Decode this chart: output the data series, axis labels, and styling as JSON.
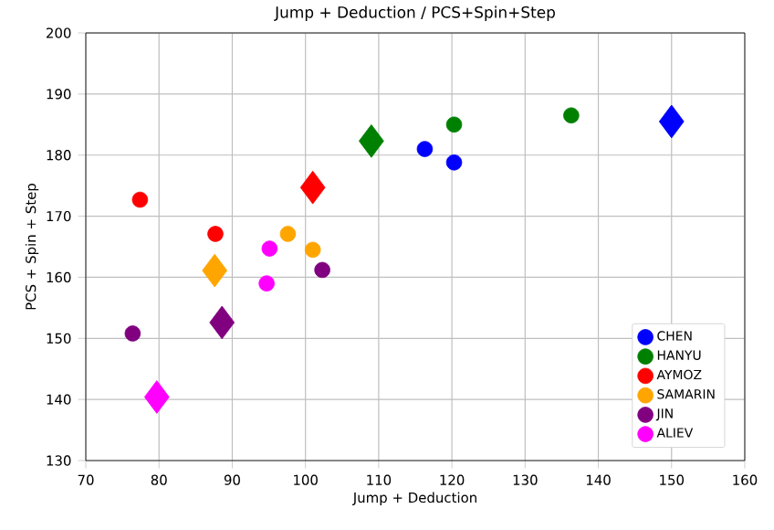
{
  "chart_data": {
    "type": "scatter",
    "title": "Jump + Deduction / PCS+Spin+Step",
    "xlabel": "Jump + Deduction",
    "ylabel": "PCS + Spin + Step",
    "xlim": [
      70,
      160
    ],
    "xticks": [
      70,
      80,
      90,
      100,
      110,
      120,
      130,
      140,
      150,
      160
    ],
    "ylim": [
      130,
      200
    ],
    "yticks": [
      130,
      140,
      150,
      160,
      170,
      180,
      190,
      200
    ],
    "grid": true,
    "legend": "bottom right",
    "marker": "circle",
    "series": [
      {
        "name": "CHEN",
        "color": "#0000ff",
        "x": [
          116.3,
          120.3
        ],
        "values": [
          181.0,
          178.8
        ]
      },
      {
        "name": "HANYU",
        "color": "#008000",
        "x": [
          120.3,
          136.3
        ],
        "values": [
          185.0,
          186.5
        ]
      },
      {
        "name": "AYMOZ",
        "color": "#ff0000",
        "x": [
          77.4,
          87.7
        ],
        "values": [
          172.7,
          167.1
        ]
      },
      {
        "name": "SAMARIN",
        "color": "#ffa500",
        "x": [
          97.6,
          101.0
        ],
        "values": [
          167.1,
          164.5
        ]
      },
      {
        "name": "JIN",
        "color": "#800080",
        "x": [
          76.4,
          102.3
        ],
        "values": [
          150.8,
          161.2
        ]
      },
      {
        "name": "ALIEV",
        "color": "#ff00ff",
        "x": [
          95.1,
          94.7
        ],
        "values": [
          164.7,
          159.0
        ]
      },
      {
        "color": "#0000ff",
        "marker": "diamond",
        "x": [
          150.0
        ],
        "values": [
          185.5
        ]
      },
      {
        "color": "#008000",
        "marker": "diamond",
        "x": [
          109.0
        ],
        "values": [
          182.3
        ]
      },
      {
        "color": "#ff0000",
        "marker": "diamond",
        "x": [
          101.0
        ],
        "values": [
          174.7
        ]
      },
      {
        "color": "#ffa500",
        "marker": "diamond",
        "x": [
          87.6
        ],
        "values": [
          161.1
        ]
      },
      {
        "color": "#800080",
        "marker": "diamond",
        "x": [
          88.6
        ],
        "values": [
          152.6
        ]
      },
      {
        "color": "#ff00ff",
        "marker": "diamond",
        "x": [
          79.7
        ],
        "values": [
          140.4
        ]
      }
    ]
  }
}
